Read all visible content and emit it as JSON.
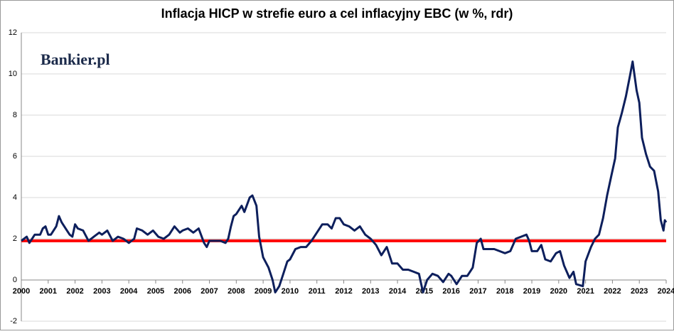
{
  "chart_data": {
    "type": "line",
    "title": "Inflacja HICP w strefie euro a cel inflacyjny EBC (w %, rdr)",
    "logo": "Bankier.pl",
    "x": [
      2000.0,
      2000.1,
      2000.2,
      2000.3,
      2000.5,
      2000.7,
      2000.8,
      2000.9,
      2001.0,
      2001.1,
      2001.3,
      2001.4,
      2001.5,
      2001.7,
      2001.8,
      2001.9,
      2002.0,
      2002.1,
      2002.3,
      2002.5,
      2002.7,
      2002.9,
      2003.0,
      2003.2,
      2003.4,
      2003.6,
      2003.8,
      2004.0,
      2004.2,
      2004.3,
      2004.5,
      2004.7,
      2004.9,
      2005.1,
      2005.3,
      2005.5,
      2005.7,
      2005.9,
      2006.0,
      2006.2,
      2006.4,
      2006.6,
      2006.8,
      2006.9,
      2007.0,
      2007.2,
      2007.4,
      2007.6,
      2007.7,
      2007.8,
      2007.9,
      2008.0,
      2008.2,
      2008.3,
      2008.5,
      2008.6,
      2008.75,
      2008.85,
      2009.0,
      2009.2,
      2009.35,
      2009.45,
      2009.6,
      2009.75,
      2009.9,
      2010.0,
      2010.2,
      2010.4,
      2010.6,
      2010.8,
      2011.0,
      2011.2,
      2011.4,
      2011.55,
      2011.7,
      2011.85,
      2012.0,
      2012.2,
      2012.4,
      2012.6,
      2012.8,
      2013.0,
      2013.2,
      2013.4,
      2013.6,
      2013.8,
      2014.0,
      2014.2,
      2014.4,
      2014.6,
      2014.8,
      2014.95,
      2015.1,
      2015.3,
      2015.5,
      2015.7,
      2015.9,
      2016.0,
      2016.2,
      2016.4,
      2016.6,
      2016.8,
      2016.95,
      2017.1,
      2017.2,
      2017.4,
      2017.6,
      2017.8,
      2018.0,
      2018.2,
      2018.4,
      2018.6,
      2018.8,
      2018.9,
      2019.0,
      2019.2,
      2019.35,
      2019.5,
      2019.7,
      2019.9,
      2020.05,
      2020.2,
      2020.4,
      2020.55,
      2020.65,
      2020.9,
      2021.0,
      2021.2,
      2021.35,
      2021.5,
      2021.65,
      2021.8,
      2021.95,
      2022.1,
      2022.2,
      2022.35,
      2022.5,
      2022.65,
      2022.75,
      2022.9,
      2023.0,
      2023.1,
      2023.25,
      2023.4,
      2023.55,
      2023.7,
      2023.8,
      2023.9,
      2023.95,
      2024.0
    ],
    "series": [
      {
        "color": "#0d1f5c",
        "values": [
          1.9,
          2.0,
          2.1,
          1.8,
          2.2,
          2.2,
          2.5,
          2.6,
          2.2,
          2.2,
          2.6,
          3.1,
          2.8,
          2.4,
          2.2,
          2.1,
          2.7,
          2.5,
          2.4,
          1.9,
          2.1,
          2.3,
          2.2,
          2.4,
          1.9,
          2.1,
          2.0,
          1.8,
          2.0,
          2.5,
          2.4,
          2.2,
          2.4,
          2.1,
          2.0,
          2.2,
          2.6,
          2.3,
          2.4,
          2.5,
          2.3,
          2.5,
          1.8,
          1.6,
          1.9,
          1.9,
          1.9,
          1.8,
          2.0,
          2.6,
          3.1,
          3.2,
          3.6,
          3.3,
          4.0,
          4.1,
          3.6,
          2.1,
          1.1,
          0.6,
          0.0,
          -0.6,
          -0.3,
          0.3,
          0.9,
          1.0,
          1.5,
          1.6,
          1.6,
          1.9,
          2.3,
          2.7,
          2.7,
          2.5,
          3.0,
          3.0,
          2.7,
          2.6,
          2.4,
          2.6,
          2.2,
          2.0,
          1.7,
          1.2,
          1.6,
          0.8,
          0.8,
          0.5,
          0.5,
          0.4,
          0.3,
          -0.6,
          0.0,
          0.3,
          0.2,
          -0.1,
          0.3,
          0.2,
          -0.2,
          0.2,
          0.2,
          0.6,
          1.8,
          2.0,
          1.5,
          1.5,
          1.5,
          1.4,
          1.3,
          1.4,
          2.0,
          2.1,
          2.2,
          1.9,
          1.4,
          1.4,
          1.7,
          1.0,
          0.9,
          1.3,
          1.4,
          0.7,
          0.1,
          0.4,
          -0.2,
          -0.3,
          0.9,
          1.6,
          2.0,
          2.2,
          3.0,
          4.1,
          5.0,
          5.9,
          7.4,
          8.1,
          8.9,
          9.9,
          10.6,
          9.2,
          8.6,
          6.9,
          6.1,
          5.5,
          5.3,
          4.3,
          2.9,
          2.4,
          2.9,
          2.8
        ]
      }
    ],
    "target": {
      "color": "#ff0000",
      "x": [
        2000,
        2024
      ],
      "values": [
        1.9,
        1.9
      ]
    },
    "xlim": [
      2000,
      2024
    ],
    "xticks": [
      2000,
      2001,
      2002,
      2003,
      2004,
      2005,
      2006,
      2007,
      2008,
      2009,
      2010,
      2011,
      2012,
      2013,
      2014,
      2015,
      2016,
      2017,
      2018,
      2019,
      2020,
      2021,
      2022,
      2023,
      2024
    ],
    "ylim": [
      -2,
      12
    ],
    "yticks": [
      -2,
      0,
      2,
      4,
      6,
      8,
      10,
      12
    ],
    "grid": true
  }
}
